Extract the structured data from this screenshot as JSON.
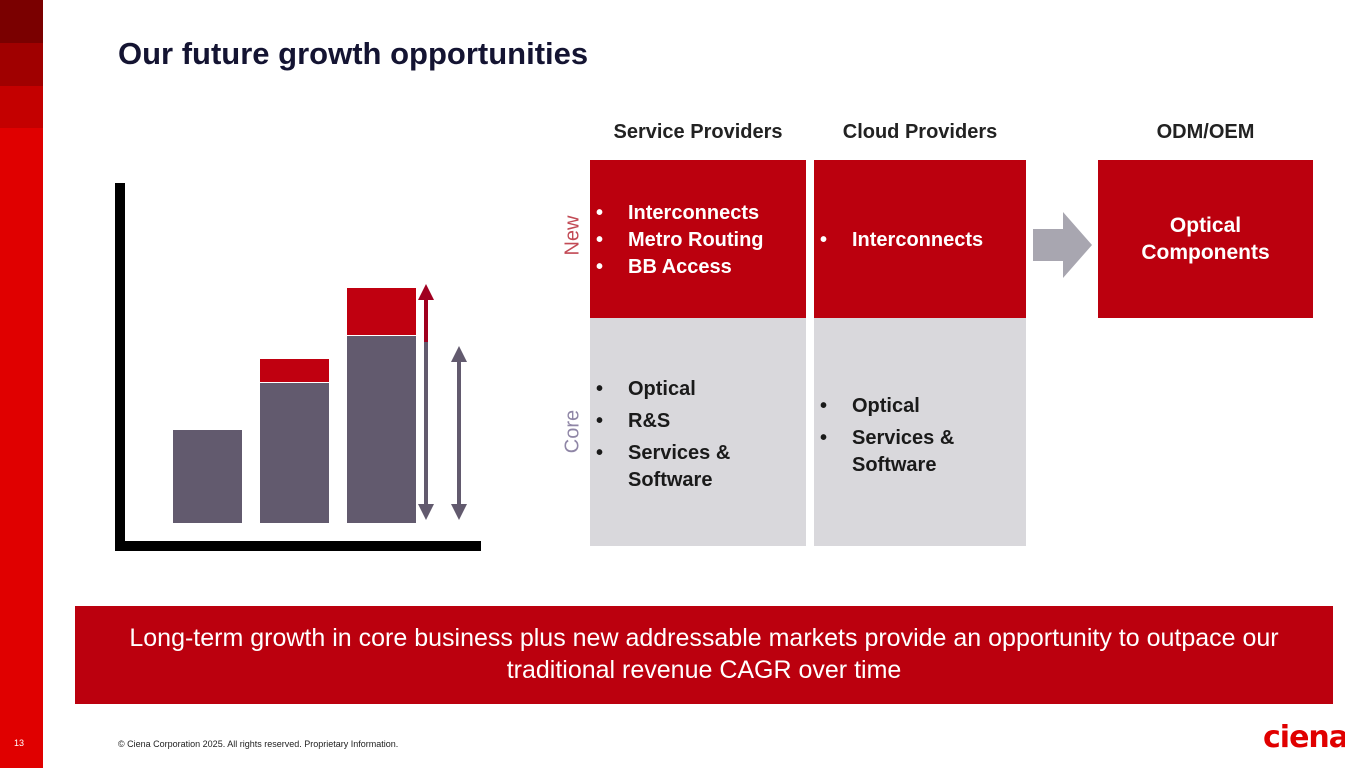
{
  "slide": {
    "title": "Our future growth opportunities",
    "page_number": "13",
    "footer": "© Ciena Corporation 2025. All rights reserved. Proprietary Information.",
    "logo_text": "ciena"
  },
  "columns": {
    "service_providers": "Service Providers",
    "cloud_providers": "Cloud Providers",
    "odm_oem": "ODM/OEM"
  },
  "rows": {
    "new": "New",
    "core": "Core"
  },
  "cells": {
    "sp_new": [
      "Interconnects",
      "Metro Routing",
      "BB Access"
    ],
    "cp_new": [
      "Interconnects"
    ],
    "sp_core": [
      "Optical",
      "R&S",
      "Services & Software"
    ],
    "cp_core": [
      "Optical",
      "Services & Software"
    ],
    "odm": "Optical Components"
  },
  "banner": "Long-term growth in core business plus new addressable markets provide an opportunity to outpace our traditional revenue CAGR over time",
  "colors": {
    "brand_red": "#bb000e",
    "core_grey": "#d9d8dc",
    "bar_grey": "#625a6e"
  },
  "chart_data": {
    "type": "bar",
    "categories": [
      "",
      "",
      ""
    ],
    "series": [
      {
        "values": [
          93,
          140,
          187
        ]
      },
      {
        "values": [
          0,
          23,
          47
        ]
      }
    ]
  }
}
